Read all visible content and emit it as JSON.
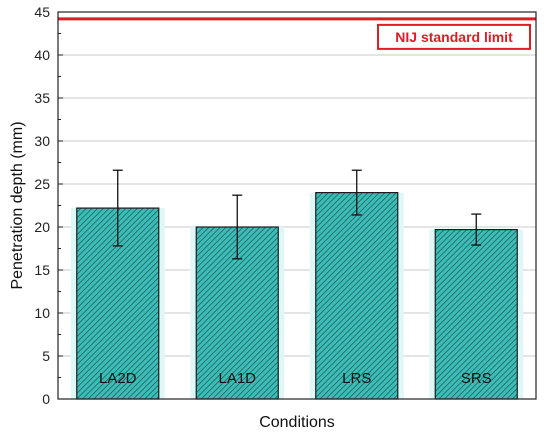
{
  "chart_data": {
    "type": "bar",
    "title": "",
    "xlabel": "Conditions",
    "ylabel": "Penetration depth (mm)",
    "categories": [
      "LA2D",
      "LA1D",
      "LRS",
      "SRS"
    ],
    "values": [
      22.2,
      20.0,
      24.0,
      19.7
    ],
    "error": [
      4.4,
      3.7,
      2.6,
      1.8
    ],
    "ylim": [
      0,
      45
    ],
    "yticks": [
      0,
      5,
      10,
      15,
      20,
      25,
      30,
      35,
      40,
      45
    ],
    "grid": true,
    "reference_line": {
      "value": 44.2,
      "label": "NIJ standard limit"
    },
    "colors": {
      "bar_fill": "#3dbdb8",
      "bar_hatch": "#1f5f5c",
      "bar_glow": "#dff7f7",
      "limit_line": "#e31b23",
      "grid": "#c8c8c8"
    }
  }
}
